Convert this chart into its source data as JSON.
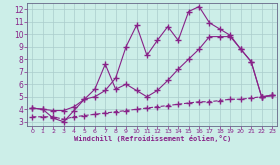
{
  "xlabel": "Windchill (Refroidissement éolien,°C)",
  "bg_color": "#cceee8",
  "line_color": "#882288",
  "grid_color": "#aacccc",
  "xlim": [
    -0.5,
    23.5
  ],
  "ylim": [
    2.7,
    12.5
  ],
  "xticks": [
    0,
    1,
    2,
    3,
    4,
    5,
    6,
    7,
    8,
    9,
    10,
    11,
    12,
    13,
    14,
    15,
    16,
    17,
    18,
    19,
    20,
    21,
    22,
    23
  ],
  "yticks": [
    3,
    4,
    5,
    6,
    7,
    8,
    9,
    10,
    11,
    12
  ],
  "line1_x": [
    0,
    1,
    2,
    3,
    4,
    5,
    6,
    7,
    8,
    9,
    10,
    11,
    12,
    13,
    14,
    15,
    16,
    17,
    18,
    19,
    20,
    21,
    22,
    23
  ],
  "line1_y": [
    4.1,
    4.0,
    3.3,
    3.0,
    3.9,
    4.8,
    5.0,
    5.5,
    6.5,
    9.0,
    10.7,
    8.3,
    9.5,
    10.6,
    9.5,
    11.8,
    12.2,
    10.9,
    10.4,
    9.9,
    8.8,
    7.8,
    5.0,
    5.1
  ],
  "line2_x": [
    0,
    1,
    2,
    3,
    4,
    5,
    6,
    7,
    8,
    9,
    10,
    11,
    12,
    13,
    14,
    15,
    16,
    17,
    18,
    19,
    20,
    21,
    22,
    23
  ],
  "line2_y": [
    4.1,
    4.0,
    3.9,
    3.9,
    4.2,
    4.8,
    5.6,
    7.6,
    5.6,
    6.0,
    5.5,
    5.0,
    5.5,
    6.3,
    7.2,
    8.0,
    8.8,
    9.8,
    9.8,
    9.8,
    8.8,
    7.8,
    5.0,
    5.1
  ],
  "line3_x": [
    0,
    1,
    2,
    3,
    4,
    5,
    6,
    7,
    8,
    9,
    10,
    11,
    12,
    13,
    14,
    15,
    16,
    17,
    18,
    19,
    20,
    21,
    22,
    23
  ],
  "line3_y": [
    3.4,
    3.4,
    3.4,
    3.2,
    3.4,
    3.5,
    3.6,
    3.7,
    3.8,
    3.9,
    4.0,
    4.1,
    4.2,
    4.3,
    4.4,
    4.5,
    4.6,
    4.6,
    4.7,
    4.8,
    4.8,
    4.9,
    5.0,
    5.1
  ],
  "marker": "+",
  "markersize": 4,
  "linewidth": 0.8
}
